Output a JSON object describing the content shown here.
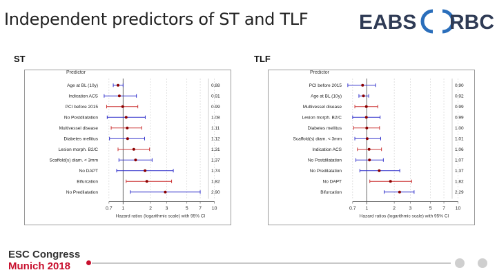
{
  "slide": {
    "title": "Independent predictors of ST and TLF",
    "logo_left": "EABS",
    "logo_right": "RBC",
    "colors": {
      "title": "#222222",
      "logo": "#2f3b55",
      "ring": "#2a6ebb",
      "ci_blue": "#3333cc",
      "ci_red": "#cc3333",
      "point": "#8b0000"
    }
  },
  "panels": [
    {
      "id": "st",
      "label": "ST",
      "header": "Predictor",
      "xlabel": "Hazard ratios (logarithmic scale) with 95% CI",
      "ticks": [
        "0.7",
        "1",
        "2",
        "3",
        "5",
        "7",
        "10"
      ],
      "tick_values": [
        0.7,
        1,
        2,
        3,
        5,
        7,
        10
      ],
      "xlim": [
        0.55,
        12
      ],
      "rows": [
        {
          "label": "Age at BL (10y)",
          "hr": 0.88,
          "lo": 0.78,
          "hi": 1.0,
          "color": "blue",
          "value_label": "0.88"
        },
        {
          "label": "Indication ACS",
          "hr": 0.91,
          "lo": 0.62,
          "hi": 1.4,
          "color": "blue",
          "value_label": "0.91"
        },
        {
          "label": "PCI before 2015",
          "hr": 0.99,
          "lo": 0.66,
          "hi": 1.45,
          "color": "red",
          "value_label": "0.99"
        },
        {
          "label": "No Postdilatation",
          "hr": 1.08,
          "lo": 0.67,
          "hi": 1.75,
          "color": "blue",
          "value_label": "1.08"
        },
        {
          "label": "Multivessel disease",
          "hr": 1.11,
          "lo": 0.74,
          "hi": 1.6,
          "color": "red",
          "value_label": "1.11"
        },
        {
          "label": "Diabetes mellitus",
          "hr": 1.12,
          "lo": 0.71,
          "hi": 1.72,
          "color": "blue",
          "value_label": "1.12"
        },
        {
          "label": "Lesion morph. B2/C",
          "hr": 1.31,
          "lo": 0.88,
          "hi": 1.95,
          "color": "red",
          "value_label": "1.31"
        },
        {
          "label": "Scaffold(s) diam. < 3mm",
          "hr": 1.37,
          "lo": 0.9,
          "hi": 2.08,
          "color": "blue",
          "value_label": "1.37"
        },
        {
          "label": "No DAPT",
          "hr": 1.74,
          "lo": 0.85,
          "hi": 3.55,
          "color": "blue",
          "value_label": "1.74"
        },
        {
          "label": "Bifurcation",
          "hr": 1.82,
          "lo": 1.08,
          "hi": 3.4,
          "color": "red",
          "value_label": "1.82"
        },
        {
          "label": "No Predilatation",
          "hr": 2.9,
          "lo": 1.2,
          "hi": 7.0,
          "color": "blue",
          "value_label": "2.90"
        }
      ]
    },
    {
      "id": "tlf",
      "label": "TLF",
      "header": "Predictor",
      "xlabel": "Hazard ratios (logarithmic scale) with 95% CI",
      "ticks": [
        "0.7",
        "1",
        "2",
        "3",
        "5",
        "7",
        "10"
      ],
      "tick_values": [
        0.7,
        1,
        2,
        3,
        5,
        7,
        10
      ],
      "xlim": [
        0.55,
        12
      ],
      "rows": [
        {
          "label": "PCI before 2015",
          "hr": 0.9,
          "lo": 0.62,
          "hi": 1.25,
          "color": "blue",
          "value_label": "0.90"
        },
        {
          "label": "Age at BL (10y)",
          "hr": 0.92,
          "lo": 0.82,
          "hi": 1.05,
          "color": "blue",
          "value_label": "0.92"
        },
        {
          "label": "Multivessel disease",
          "hr": 0.99,
          "lo": 0.74,
          "hi": 1.32,
          "color": "red",
          "value_label": "0.99"
        },
        {
          "label": "Lesion morph. B2/C",
          "hr": 0.99,
          "lo": 0.7,
          "hi": 1.4,
          "color": "blue",
          "value_label": "0.99"
        },
        {
          "label": "Diabetes mellitus",
          "hr": 1.0,
          "lo": 0.72,
          "hi": 1.38,
          "color": "red",
          "value_label": "1.00"
        },
        {
          "label": "Scaffold(s) diam. < 3mm",
          "hr": 1.01,
          "lo": 0.74,
          "hi": 1.42,
          "color": "blue",
          "value_label": "1.01"
        },
        {
          "label": "Indication ACS",
          "hr": 1.06,
          "lo": 0.79,
          "hi": 1.45,
          "color": "red",
          "value_label": "1.06"
        },
        {
          "label": "No Postdilatation",
          "hr": 1.07,
          "lo": 0.76,
          "hi": 1.52,
          "color": "blue",
          "value_label": "1.07"
        },
        {
          "label": "No Predilatation",
          "hr": 1.37,
          "lo": 0.84,
          "hi": 2.3,
          "color": "blue",
          "value_label": "1.37"
        },
        {
          "label": "No DAPT",
          "hr": 1.82,
          "lo": 1.08,
          "hi": 3.1,
          "color": "red",
          "value_label": "1.82"
        },
        {
          "label": "Bifurcation",
          "hr": 2.29,
          "lo": 1.55,
          "hi": 3.3,
          "color": "blue",
          "value_label": "2.29"
        }
      ]
    }
  ],
  "footer": {
    "congress": "ESC Congress",
    "city": "Munich 2018"
  }
}
